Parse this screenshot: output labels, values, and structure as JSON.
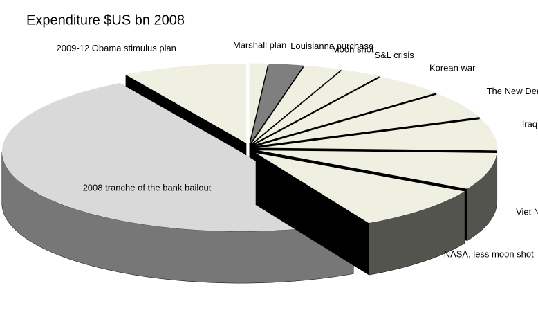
{
  "chart_data": {
    "type": "pie",
    "title": "Expenditure $US bn 2008",
    "categories": [
      "Marshall plan",
      "Louisianna purchase",
      "Moon shot",
      "S&L crisis",
      "Korean war",
      "The New Deal",
      "Iraq war",
      "Viet Nam",
      "NASA, less moon shot",
      "2008 tranche of the bank bailout",
      "2009-12 Obama stimulus plan"
    ],
    "values": [
      115,
      217,
      237,
      256,
      454,
      500,
      597,
      698,
      851,
      4600,
      787
    ],
    "colors": [
      "#efefe2",
      "#7f7f7f",
      "#efefe2",
      "#efefe2",
      "#efefe2",
      "#efefe2",
      "#efefe2",
      "#efefe2",
      "#efefe2",
      "#d9d9d9",
      "#efefe2"
    ]
  }
}
